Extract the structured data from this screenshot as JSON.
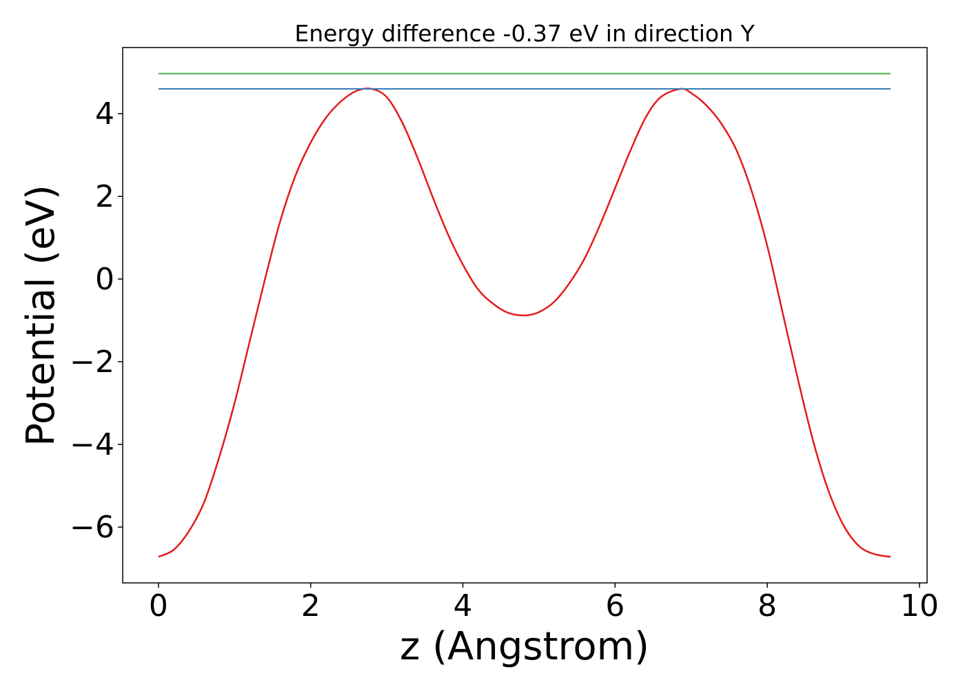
{
  "chart_data": {
    "type": "line",
    "title": "Energy difference -0.37 eV in direction Y",
    "xlabel": "z (Angstrom)",
    "ylabel": "Potential (eV)",
    "xlim": [
      -0.47,
      10.1
    ],
    "ylim": [
      -7.35,
      5.6
    ],
    "xticks": [
      {
        "value": 0,
        "label": "0"
      },
      {
        "value": 2,
        "label": "2"
      },
      {
        "value": 4,
        "label": "4"
      },
      {
        "value": 6,
        "label": "6"
      },
      {
        "value": 8,
        "label": "8"
      },
      {
        "value": 10,
        "label": "10"
      }
    ],
    "yticks": [
      {
        "value": -6,
        "label": "−6"
      },
      {
        "value": -4,
        "label": "−4"
      },
      {
        "value": -2,
        "label": "−2"
      },
      {
        "value": 0,
        "label": "0"
      },
      {
        "value": 2,
        "label": "2"
      },
      {
        "value": 4,
        "label": "4"
      }
    ],
    "grid": false,
    "series": [
      {
        "color": "#e41a1c",
        "x": [
          0,
          0.2,
          0.4,
          0.6,
          0.8,
          1.0,
          1.2,
          1.4,
          1.6,
          1.8,
          2.0,
          2.2,
          2.4,
          2.6,
          2.8,
          3.0,
          3.2,
          3.4,
          3.6,
          3.8,
          4.0,
          4.2,
          4.4,
          4.6,
          4.82,
          5.0,
          5.2,
          5.4,
          5.6,
          5.8,
          6.0,
          6.2,
          6.4,
          6.6,
          6.86,
          7.0,
          7.2,
          7.4,
          7.6,
          7.8,
          8.0,
          8.2,
          8.4,
          8.6,
          8.8,
          9.0,
          9.2,
          9.4,
          9.62
        ],
        "y": [
          -6.72,
          -6.55,
          -6.1,
          -5.4,
          -4.3,
          -3.0,
          -1.5,
          0.0,
          1.4,
          2.5,
          3.3,
          3.9,
          4.3,
          4.55,
          4.6,
          4.4,
          3.8,
          2.95,
          2.0,
          1.1,
          0.35,
          -0.25,
          -0.6,
          -0.82,
          -0.88,
          -0.8,
          -0.55,
          -0.1,
          0.5,
          1.3,
          2.2,
          3.1,
          3.9,
          4.4,
          4.6,
          4.5,
          4.2,
          3.75,
          3.1,
          2.1,
          0.8,
          -0.8,
          -2.4,
          -3.9,
          -5.1,
          -5.95,
          -6.45,
          -6.65,
          -6.72
        ]
      },
      {
        "color": "#377eb8",
        "x": [
          0,
          9.62
        ],
        "y": [
          4.6,
          4.6
        ]
      },
      {
        "color": "#4daf4a",
        "x": [
          0,
          9.62
        ],
        "y": [
          4.97,
          4.97
        ]
      }
    ]
  }
}
